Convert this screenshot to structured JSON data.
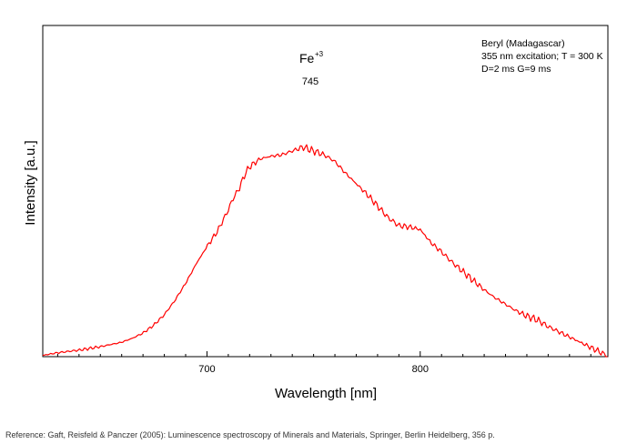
{
  "chart_data": {
    "type": "line",
    "xlabel": "Wavelength [nm]",
    "ylabel": "Intensity [a.u.]",
    "xlim": [
      623,
      888
    ],
    "ylim": [
      0,
      100
    ],
    "x_ticks": [
      700,
      800
    ],
    "y_ticks_labeled": false,
    "grid": false,
    "legend": "none",
    "series_color": "#ff0000",
    "info_lines": [
      "Beryl (Madagascar)",
      "355 nm excitation; T = 300 K",
      "D=2 ms G=9 ms"
    ],
    "annotation": {
      "label": "Fe",
      "superscript": "+3",
      "peak_label": "745"
    },
    "series": [
      {
        "x": [
          623,
          630,
          640,
          650,
          660,
          665,
          670,
          675,
          680,
          685,
          690,
          695,
          700,
          705,
          710,
          712,
          715,
          718,
          720,
          725,
          730,
          735,
          740,
          745,
          750,
          755,
          760,
          765,
          770,
          775,
          780,
          785,
          790,
          795,
          800,
          805,
          810,
          815,
          820,
          825,
          830,
          835,
          840,
          845,
          850,
          855,
          860,
          865,
          870,
          875,
          880,
          885,
          888
        ],
        "y": [
          0.5,
          1.5,
          2.5,
          3.8,
          5.5,
          7,
          9,
          12,
          16,
          21.5,
          28,
          35.5,
          42,
          48,
          56,
          60,
          64,
          70,
          72.5,
          75.5,
          76.5,
          77,
          78.5,
          80,
          78.5,
          77,
          74.5,
          70,
          66,
          62,
          57.5,
          53,
          50,
          49.5,
          48.5,
          43.5,
          40,
          36,
          32.5,
          29,
          25.5,
          22.5,
          20,
          17.5,
          15.5,
          14,
          11.5,
          9.5,
          7.5,
          5.5,
          3.5,
          1.5,
          0
        ]
      }
    ]
  },
  "reference": "Reference: Gaft, Reisfeld & Panczer (2005): Luminescence spectroscopy of Minerals and Materials, Springer, Berlin Heidelberg, 356 p."
}
